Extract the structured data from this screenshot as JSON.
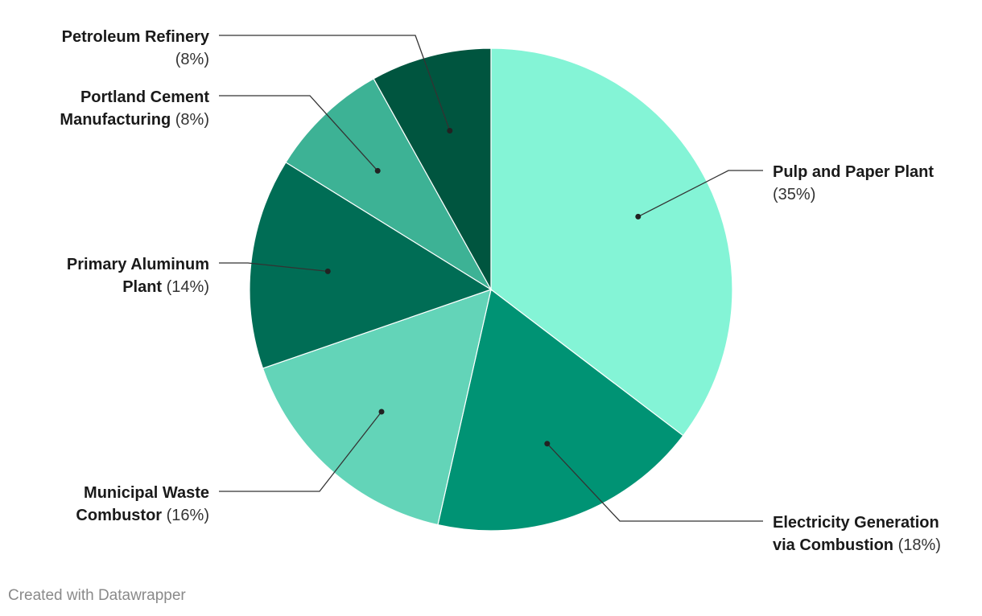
{
  "chart_data": {
    "type": "pie",
    "slices": [
      {
        "label_lines": [
          "Pulp and Paper Plant"
        ],
        "pct_text": "(35%)",
        "value": 35,
        "color": "#84f4d6",
        "side": "right"
      },
      {
        "label_lines": [
          "Electricity Generation",
          "via Combustion"
        ],
        "pct_text": "(18%)",
        "value": 18,
        "color": "#009374",
        "side": "right"
      },
      {
        "label_lines": [
          "Municipal Waste",
          "Combustor"
        ],
        "pct_text": "(16%)",
        "value": 16,
        "color": "#63d4b8",
        "side": "left"
      },
      {
        "label_lines": [
          "Primary Aluminum",
          "Plant"
        ],
        "pct_text": "(14%)",
        "value": 14,
        "color": "#006d55",
        "side": "left"
      },
      {
        "label_lines": [
          "Portland Cement",
          "Manufacturing"
        ],
        "pct_text": "(8%)",
        "value": 8,
        "color": "#3db295",
        "side": "left"
      },
      {
        "label_lines": [
          "Petroleum Refinery"
        ],
        "pct_text": "(8%)",
        "value": 8,
        "color": "#00553f",
        "side": "left"
      }
    ]
  },
  "footer": {
    "credit": "Created with Datawrapper"
  }
}
